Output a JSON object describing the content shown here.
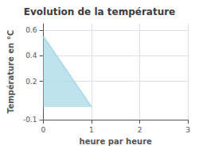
{
  "chart_data": {
    "type": "area",
    "title": "Evolution de la température",
    "xlabel": "heure par heure",
    "ylabel": "Température en °C",
    "x": [
      0,
      1
    ],
    "values": [
      0.55,
      0.0
    ],
    "color": "#aedce8",
    "xlim": [
      0,
      3
    ],
    "xticks": [
      0,
      1,
      2,
      3
    ],
    "ylim": [
      -0.1,
      0.65
    ],
    "yticks": [
      -0.1,
      0.2,
      0.4,
      0.6
    ],
    "grid": true
  }
}
